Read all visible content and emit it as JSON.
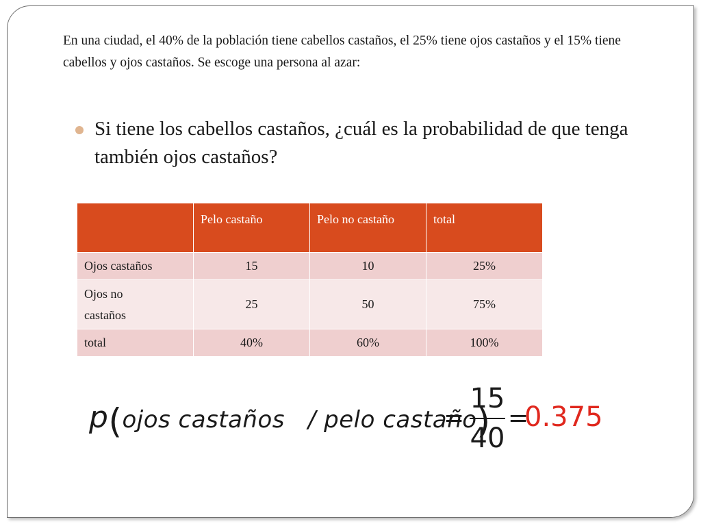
{
  "intro": "En una ciudad, el 40% de la población tiene cabellos castaños, el 25% tiene ojos castaños y el 15% tiene cabellos y ojos castaños. Se escoge una persona al azar:",
  "bullet": "Si tiene los cabellos castaños, ¿cuál es la probabilidad de que tenga también ojos castaños?",
  "table": {
    "header": [
      "",
      "Pelo castaño",
      "Pelo no castaño",
      "total"
    ],
    "rows": [
      [
        "Ojos castaños",
        "15",
        "10",
        "25%"
      ],
      [
        "Ojos no castaños",
        "25",
        "50",
        "75%"
      ],
      [
        "total",
        "40%",
        "60%",
        "100%"
      ]
    ]
  },
  "formula": {
    "p": "p",
    "argument": "ojos castaños   / pelo castaño",
    "numerator": "15",
    "denominator": "40",
    "equals": "=",
    "result": "0.375"
  },
  "colors": {
    "header_bg": "#d84b1e",
    "row_dark": "#efcfcf",
    "row_light": "#f7e8e8",
    "result": "#e0281e",
    "bullet": "#e0b590"
  }
}
